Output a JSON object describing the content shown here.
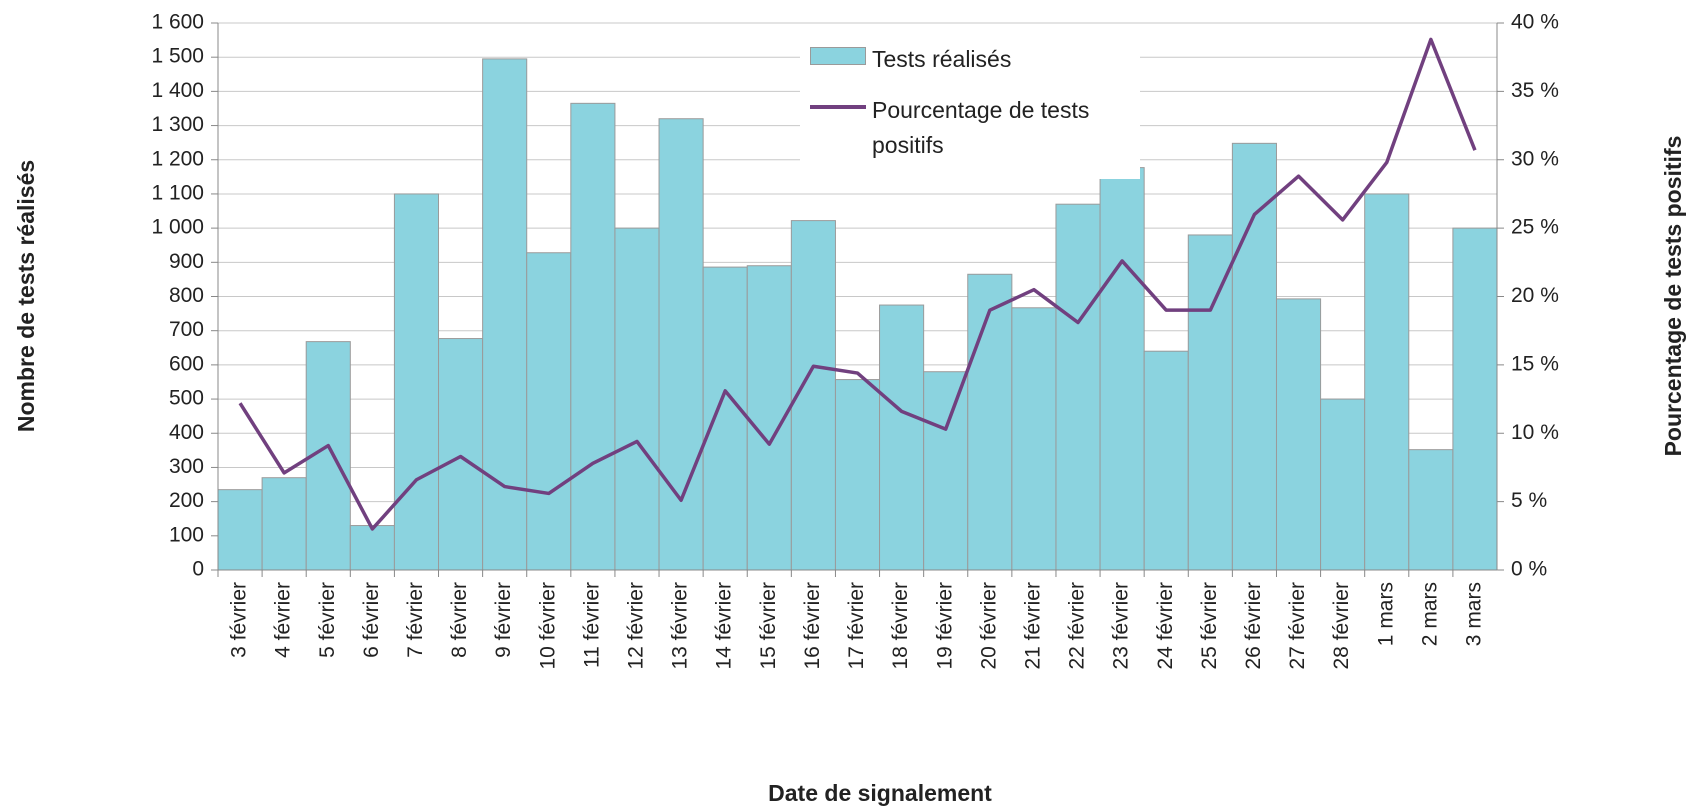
{
  "chart_data": {
    "type": "bar-line",
    "x_label": "Date de signalement",
    "y_label": "Nombre de tests réalisés",
    "y2_label": "Pourcentage de tests positifs",
    "categories": [
      "3 février",
      "4 février",
      "5 février",
      "6 février",
      "7 février",
      "8 février",
      "9 février",
      "10 février",
      "11 février",
      "12 février",
      "13 février",
      "14 février",
      "15 février",
      "16 février",
      "17 février",
      "18 février",
      "19 février",
      "20 février",
      "21 février",
      "22 février",
      "23 février",
      "24 février",
      "25 février",
      "26 février",
      "27 février",
      "28 février",
      "1 mars",
      "2 mars",
      "3 mars"
    ],
    "series": [
      {
        "name": "Tests réalisés",
        "type": "bar",
        "color": "#8bd3df",
        "values": [
          235,
          270,
          668,
          130,
          1100,
          677,
          1495,
          928,
          1365,
          1000,
          1320,
          886,
          890,
          1022,
          557,
          775,
          580,
          865,
          767,
          1070,
          1177,
          640,
          980,
          1248,
          793,
          500,
          1100,
          352,
          1000
        ]
      },
      {
        "name": "Pourcentage de tests positifs",
        "type": "line",
        "axis": "y2",
        "color": "#71407f",
        "values": [
          12.2,
          7.1,
          9.1,
          3.0,
          6.6,
          8.3,
          6.1,
          5.6,
          7.8,
          9.4,
          5.1,
          13.1,
          9.2,
          14.9,
          14.4,
          11.6,
          10.3,
          19.0,
          20.5,
          18.1,
          22.6,
          19.0,
          19.0,
          26.0,
          28.8,
          25.6,
          29.8,
          38.8,
          30.7
        ]
      }
    ],
    "ylim": [
      0,
      1600
    ],
    "yticks": [
      0,
      {
        "value": 100,
        "label": "100"
      },
      {
        "value": 200,
        "label": "200"
      },
      {
        "value": 300,
        "label": "300"
      },
      {
        "value": 400,
        "label": "400"
      },
      {
        "value": 500,
        "label": "500"
      },
      {
        "value": 600,
        "label": "600"
      },
      {
        "value": 700,
        "label": "700"
      },
      {
        "value": 800,
        "label": "800"
      },
      {
        "value": 900,
        "label": "900"
      },
      {
        "value": 1000,
        "label": "1 000"
      },
      {
        "value": 1100,
        "label": "1 100"
      },
      {
        "value": 1200,
        "label": "1 200"
      },
      {
        "value": 1300,
        "label": "1 300"
      },
      {
        "value": 1400,
        "label": "1 400"
      },
      {
        "value": 1500,
        "label": "1 500"
      },
      {
        "value": 1600,
        "label": "1 600"
      }
    ],
    "y2lim": [
      0,
      40
    ],
    "y2ticks": [
      {
        "value": 0,
        "label": "0 %"
      },
      {
        "value": 5,
        "label": "5 %"
      },
      {
        "value": 10,
        "label": "10 %"
      },
      {
        "value": 15,
        "label": "15 %"
      },
      {
        "value": 20,
        "label": "20 %"
      },
      {
        "value": 25,
        "label": "25 %"
      },
      {
        "value": 30,
        "label": "30 %"
      },
      {
        "value": 35,
        "label": "35 %"
      },
      {
        "value": 40,
        "label": "40 %"
      }
    ],
    "grid": true
  }
}
